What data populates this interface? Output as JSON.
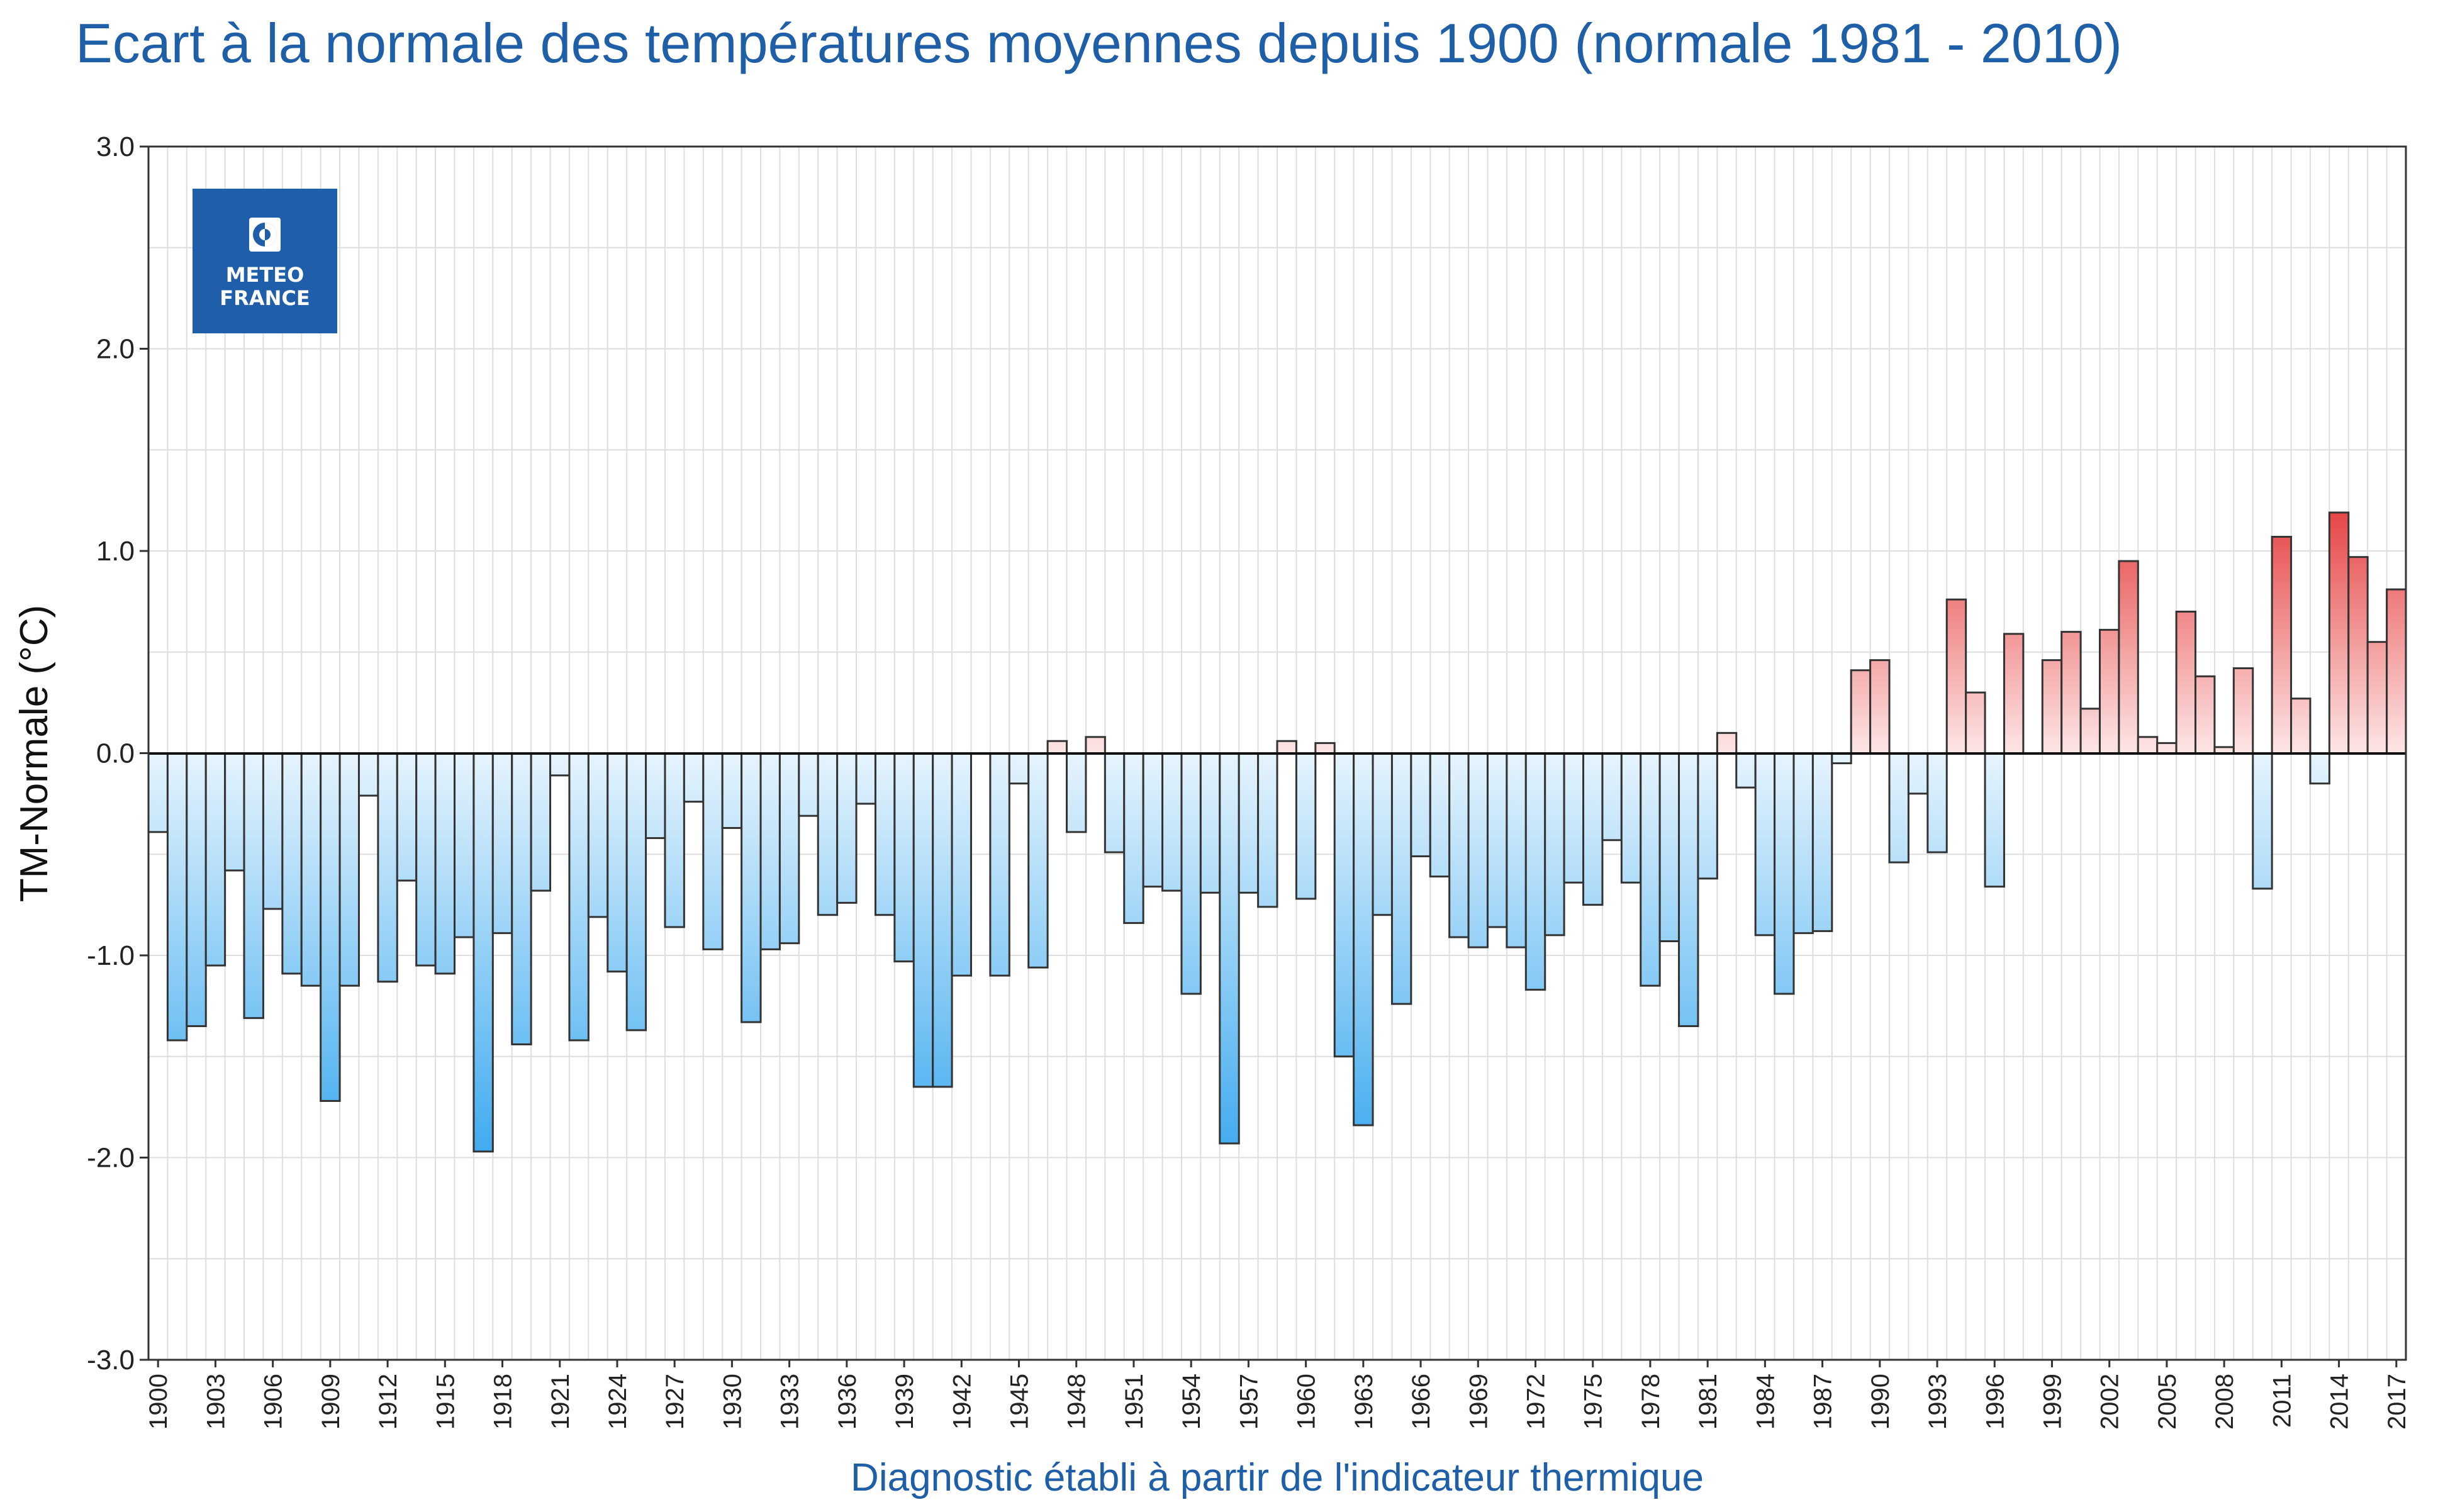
{
  "chart_data": {
    "type": "bar",
    "title": "Ecart à la normale des températures moyennes depuis 1900 (normale 1981 - 2010)",
    "xlabel": "Diagnostic établi à partir de l'indicateur thermique",
    "ylabel": "TM-Normale (°C)",
    "ylim": [
      -3.0,
      3.0
    ],
    "yticks": [
      "3.0",
      "2.0",
      "1.0",
      "0.0",
      "-1.0",
      "-2.0",
      "-3.0"
    ],
    "ytick_values": [
      3,
      2,
      1,
      0,
      -1,
      -2,
      -3
    ],
    "xtick_labels": [
      "1900",
      "1903",
      "1906",
      "1909",
      "1912",
      "1915",
      "1918",
      "1921",
      "1924",
      "1927",
      "1930",
      "1933",
      "1936",
      "1939",
      "1942",
      "1945",
      "1948",
      "1951",
      "1954",
      "1957",
      "1960",
      "1963",
      "1966",
      "1969",
      "1972",
      "1975",
      "1978",
      "1981",
      "1984",
      "1987",
      "1990",
      "1993",
      "1996",
      "1999",
      "2002",
      "2005",
      "2008",
      "2011",
      "2014",
      "2017"
    ],
    "grid": true,
    "categories": [
      1900,
      1901,
      1902,
      1903,
      1904,
      1905,
      1906,
      1907,
      1908,
      1909,
      1910,
      1911,
      1912,
      1913,
      1914,
      1915,
      1916,
      1917,
      1918,
      1919,
      1920,
      1921,
      1922,
      1923,
      1924,
      1925,
      1926,
      1927,
      1928,
      1929,
      1930,
      1931,
      1932,
      1933,
      1934,
      1935,
      1936,
      1937,
      1938,
      1939,
      1940,
      1941,
      1942,
      1943,
      1944,
      1945,
      1946,
      1947,
      1948,
      1949,
      1950,
      1951,
      1952,
      1953,
      1954,
      1955,
      1956,
      1957,
      1958,
      1959,
      1960,
      1961,
      1962,
      1963,
      1964,
      1965,
      1966,
      1967,
      1968,
      1969,
      1970,
      1971,
      1972,
      1973,
      1974,
      1975,
      1976,
      1977,
      1978,
      1979,
      1980,
      1981,
      1982,
      1983,
      1984,
      1985,
      1986,
      1987,
      1988,
      1989,
      1990,
      1991,
      1992,
      1993,
      1994,
      1995,
      1996,
      1997,
      1998,
      1999,
      2000,
      2001,
      2002,
      2003,
      2004,
      2005,
      2006,
      2007,
      2008,
      2009,
      2010,
      2011,
      2012,
      2013,
      2014,
      2015,
      2016,
      2017
    ],
    "values": [
      -0.39,
      -1.42,
      -1.35,
      -1.05,
      -0.58,
      -1.31,
      -0.77,
      -1.09,
      -1.15,
      -1.72,
      -1.15,
      -0.21,
      -1.13,
      -0.63,
      -1.05,
      -1.09,
      -0.91,
      -1.97,
      -0.89,
      -1.44,
      -0.68,
      -0.11,
      -1.42,
      -0.81,
      -1.08,
      -1.37,
      -0.42,
      -0.86,
      -0.24,
      -0.97,
      -0.37,
      -1.33,
      -0.97,
      -0.94,
      -0.31,
      -0.8,
      -0.74,
      -0.25,
      -0.8,
      -1.03,
      -1.65,
      -1.65,
      -1.1,
      0.0,
      -1.1,
      -0.15,
      -1.06,
      0.06,
      -0.39,
      0.08,
      -0.49,
      -0.84,
      -0.66,
      -0.68,
      -1.19,
      -0.69,
      -1.93,
      -0.69,
      -0.76,
      0.06,
      -0.72,
      0.05,
      -1.5,
      -1.84,
      -0.8,
      -1.24,
      -0.51,
      -0.61,
      -0.91,
      -0.96,
      -0.86,
      -0.96,
      -1.17,
      -0.9,
      -0.64,
      -0.75,
      -0.43,
      -0.64,
      -1.15,
      -0.93,
      -1.35,
      -0.62,
      0.1,
      -0.17,
      -0.9,
      -1.19,
      -0.89,
      -0.88,
      -0.05,
      0.41,
      0.46,
      -0.54,
      -0.2,
      -0.49,
      0.76,
      0.3,
      -0.66,
      0.59,
      0.0,
      0.46,
      0.6,
      0.22,
      0.61,
      0.95,
      0.08,
      0.05,
      0.7,
      0.38,
      0.03,
      0.42,
      -0.67,
      1.07,
      0.27,
      -0.15,
      1.19,
      0.97,
      0.55,
      0.81
    ]
  },
  "logo": {
    "line1": "METEO",
    "line2": "FRANCE",
    "icon": "meteo-france-logo-icon",
    "bg_color": "#1f5ea8"
  },
  "colors": {
    "positive_light": "#fbe3e3",
    "positive_dark": "#e64848",
    "negative_light": "#e5f4fd",
    "negative_dark": "#34a6ee",
    "title": "#1f5fa8"
  }
}
